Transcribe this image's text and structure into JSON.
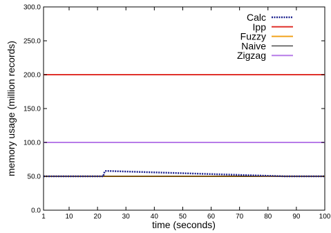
{
  "chart_data": {
    "type": "line",
    "title": "",
    "xlabel": "time (seconds)",
    "ylabel": "memory usage (million records)",
    "xlim": [
      1,
      100
    ],
    "ylim": [
      0,
      300
    ],
    "xticks": [
      "1",
      "10",
      "20",
      "30",
      "40",
      "50",
      "60",
      "70",
      "80",
      "90",
      "100"
    ],
    "yticks": [
      "0.0",
      "50.0",
      "100.0",
      "150.0",
      "200.0",
      "250.0",
      "300.0"
    ],
    "grid": false,
    "legend_position": "top-right",
    "series": [
      {
        "name": "Calc",
        "color": "#1a1f8c",
        "style": "dotted",
        "x": [
          1,
          22,
          22.5,
          23,
          86,
          88,
          100
        ],
        "y": [
          50,
          50,
          57,
          58,
          50,
          50,
          50
        ]
      },
      {
        "name": "Ipp",
        "color": "#e0302a",
        "style": "solid",
        "x": [
          1,
          100
        ],
        "y": [
          200,
          200
        ]
      },
      {
        "name": "Fuzzy",
        "color": "#f2a31b",
        "style": "solid",
        "x": [
          1,
          100
        ],
        "y": [
          50,
          50
        ]
      },
      {
        "name": "Naive",
        "color": "#000000",
        "style": "solid",
        "x": [
          1,
          100
        ],
        "y": [
          50,
          50
        ]
      },
      {
        "name": "Zigzag",
        "color": "#b77be8",
        "style": "solid",
        "x": [
          1,
          100
        ],
        "y": [
          100,
          100
        ]
      }
    ]
  }
}
